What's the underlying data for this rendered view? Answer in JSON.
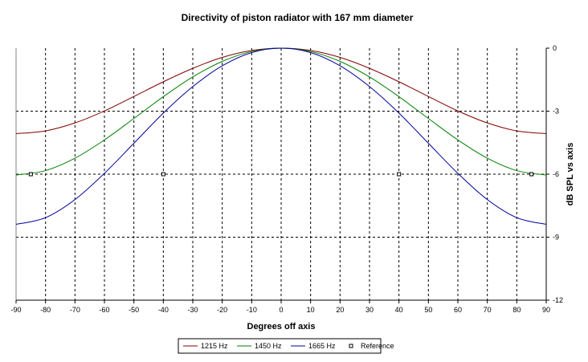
{
  "chart_data": {
    "type": "line",
    "title": "Directivity of piston radiator with 167 mm diameter",
    "xlabel": "Degrees off axis",
    "ylabel": "dB SPL vs axis",
    "xlim": [
      -90,
      90
    ],
    "ylim": [
      -12,
      0
    ],
    "xticks": [
      "-90",
      "-80",
      "-70",
      "-60",
      "-50",
      "-40",
      "-30",
      "-20",
      "-10",
      "0",
      "10",
      "20",
      "30",
      "40",
      "50",
      "60",
      "70",
      "80",
      "90"
    ],
    "yticks": [
      "0",
      "-3",
      "-6",
      "-9",
      "-12"
    ],
    "grid": true,
    "legend_position": "bottom",
    "x": [
      -90,
      -80,
      -70,
      -60,
      -50,
      -40,
      -30,
      -20,
      -10,
      0,
      10,
      20,
      30,
      40,
      50,
      60,
      70,
      80,
      90
    ],
    "series": [
      {
        "name": "1215 Hz",
        "color": "#800000",
        "values": [
          -4.07,
          -3.94,
          -3.56,
          -2.99,
          -2.3,
          -1.6,
          -0.96,
          -0.44,
          -0.11,
          0,
          -0.11,
          -0.44,
          -0.96,
          -1.6,
          -2.3,
          -2.99,
          -3.56,
          -3.94,
          -4.07
        ]
      },
      {
        "name": "1450 Hz",
        "color": "#008000",
        "values": [
          -6.04,
          -5.83,
          -5.24,
          -4.37,
          -3.35,
          -2.31,
          -1.37,
          -0.63,
          -0.16,
          0,
          -0.16,
          -0.63,
          -1.37,
          -2.31,
          -3.35,
          -4.37,
          -5.24,
          -5.83,
          -6.04
        ]
      },
      {
        "name": "1665 Hz",
        "color": "#000099",
        "values": [
          -8.39,
          -8.07,
          -7.21,
          -5.96,
          -4.53,
          -3.09,
          -1.83,
          -0.84,
          -0.21,
          0,
          -0.21,
          -0.84,
          -1.83,
          -3.09,
          -4.53,
          -5.96,
          -7.21,
          -8.07,
          -8.39
        ]
      }
    ],
    "reference": {
      "name": "Reference",
      "points": [
        [
          -85,
          -6
        ],
        [
          -40,
          -6
        ],
        [
          40,
          -6
        ],
        [
          85,
          -6
        ]
      ]
    }
  }
}
